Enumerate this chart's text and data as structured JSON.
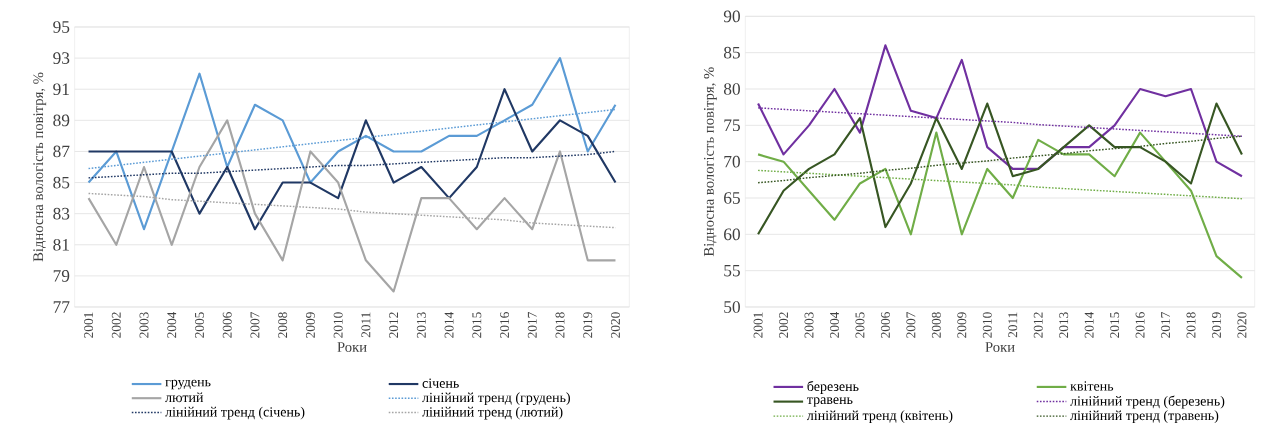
{
  "chart_data": [
    {
      "type": "line",
      "categories": [
        "2001",
        "2002",
        "2003",
        "2004",
        "2005",
        "2006",
        "2007",
        "2008",
        "2009",
        "2010",
        "2011",
        "2012",
        "2013",
        "2014",
        "2015",
        "2016",
        "2017",
        "2018",
        "2019",
        "2020"
      ],
      "xlabel": "Роки",
      "ylabel": "Відносна вологість повітря, %",
      "ylim": [
        77,
        95
      ],
      "yticks": [
        77,
        79,
        81,
        83,
        85,
        87,
        89,
        91,
        93,
        95
      ],
      "grid": "y",
      "legend": "bottom",
      "series": [
        {
          "name": "грудень",
          "color": "#5b9bd5",
          "line_style": "solid",
          "values": [
            85,
            87,
            82,
            87,
            92,
            86,
            90,
            89,
            85,
            87,
            88,
            87,
            87,
            88,
            88,
            89,
            90,
            93,
            87,
            90
          ]
        },
        {
          "name": "січень",
          "color": "#203864",
          "line_style": "solid",
          "values": [
            87,
            87,
            87,
            87,
            83,
            86,
            82,
            85,
            85,
            84,
            89,
            85,
            86,
            84,
            86,
            91,
            87,
            89,
            88,
            85
          ]
        },
        {
          "name": "лютий",
          "color": "#a5a5a5",
          "line_style": "solid",
          "values": [
            84,
            81,
            86,
            81,
            86,
            89,
            83,
            80,
            87,
            85,
            80,
            78,
            84,
            84,
            82,
            84,
            82,
            87,
            80,
            80
          ]
        },
        {
          "name": "лінійний тренд (грудень)",
          "color": "#5b9bd5",
          "line_style": "dotted",
          "values": [
            85.9,
            86.1,
            86.3,
            86.5,
            86.7,
            86.9,
            87.1,
            87.3,
            87.5,
            87.7,
            87.9,
            88.1,
            88.3,
            88.5,
            88.7,
            88.9,
            89.1,
            89.3,
            89.5,
            89.7
          ]
        },
        {
          "name": "лінійний тренд (січень)",
          "color": "#203864",
          "line_style": "dotted",
          "values": [
            85.3,
            85.4,
            85.5,
            85.6,
            85.6,
            85.7,
            85.8,
            85.9,
            86.0,
            86.1,
            86.1,
            86.2,
            86.3,
            86.4,
            86.5,
            86.6,
            86.6,
            86.7,
            86.8,
            87.0
          ]
        },
        {
          "name": "лінійний тренд (лютий)",
          "color": "#a5a5a5",
          "line_style": "dotted",
          "values": [
            84.3,
            84.2,
            84.1,
            83.9,
            83.8,
            83.7,
            83.6,
            83.5,
            83.4,
            83.3,
            83.1,
            83.0,
            82.9,
            82.8,
            82.7,
            82.6,
            82.4,
            82.3,
            82.2,
            82.1
          ]
        }
      ]
    },
    {
      "type": "line",
      "categories": [
        "2001",
        "2002",
        "2003",
        "2004",
        "2005",
        "2006",
        "2007",
        "2008",
        "2009",
        "2010",
        "2011",
        "2012",
        "2013",
        "2014",
        "2015",
        "2016",
        "2017",
        "2018",
        "2019",
        "2020"
      ],
      "xlabel": "Роки",
      "ylabel": "Відносна вологість повітря, %",
      "ylim": [
        50,
        90
      ],
      "yticks": [
        50,
        55,
        60,
        65,
        70,
        75,
        80,
        85,
        90
      ],
      "grid": "y",
      "legend": "bottom",
      "series": [
        {
          "name": "березень",
          "color": "#7030a0",
          "line_style": "solid",
          "values": [
            78,
            71,
            75,
            80,
            74,
            86,
            77,
            76,
            84,
            72,
            69,
            69,
            72,
            72,
            75,
            80,
            79,
            80,
            70,
            68
          ]
        },
        {
          "name": "квітень",
          "color": "#70ad47",
          "line_style": "solid",
          "values": [
            71,
            70,
            66,
            62,
            67,
            69,
            60,
            74,
            60,
            69,
            65,
            73,
            71,
            71,
            68,
            74,
            70,
            66,
            57,
            54
          ]
        },
        {
          "name": "травень",
          "color": "#375623",
          "line_style": "solid",
          "values": [
            60,
            66,
            69,
            71,
            76,
            61,
            67,
            76,
            69,
            78,
            68,
            69,
            72,
            75,
            72,
            72,
            70,
            67,
            78,
            71
          ]
        },
        {
          "name": "лінійний тренд (березень)",
          "color": "#7030a0",
          "line_style": "dotted",
          "values": [
            77.4,
            77.2,
            77.0,
            76.8,
            76.6,
            76.4,
            76.2,
            76.0,
            75.8,
            75.6,
            75.4,
            75.1,
            74.9,
            74.7,
            74.5,
            74.3,
            74.1,
            73.9,
            73.7,
            73.5
          ]
        },
        {
          "name": "лінійний тренд (квітень)",
          "color": "#70ad47",
          "line_style": "dotted",
          "values": [
            68.8,
            68.6,
            68.4,
            68.2,
            68.0,
            67.8,
            67.6,
            67.4,
            67.2,
            67.0,
            66.8,
            66.5,
            66.3,
            66.1,
            65.9,
            65.7,
            65.5,
            65.3,
            65.1,
            64.9
          ]
        },
        {
          "name": "лінійний тренд (травень)",
          "color": "#375623",
          "line_style": "dotted",
          "values": [
            67.1,
            67.4,
            67.8,
            68.1,
            68.4,
            68.8,
            69.1,
            69.5,
            69.8,
            70.1,
            70.5,
            70.8,
            71.1,
            71.5,
            71.8,
            72.1,
            72.5,
            72.8,
            73.2,
            73.5
          ]
        }
      ]
    }
  ]
}
